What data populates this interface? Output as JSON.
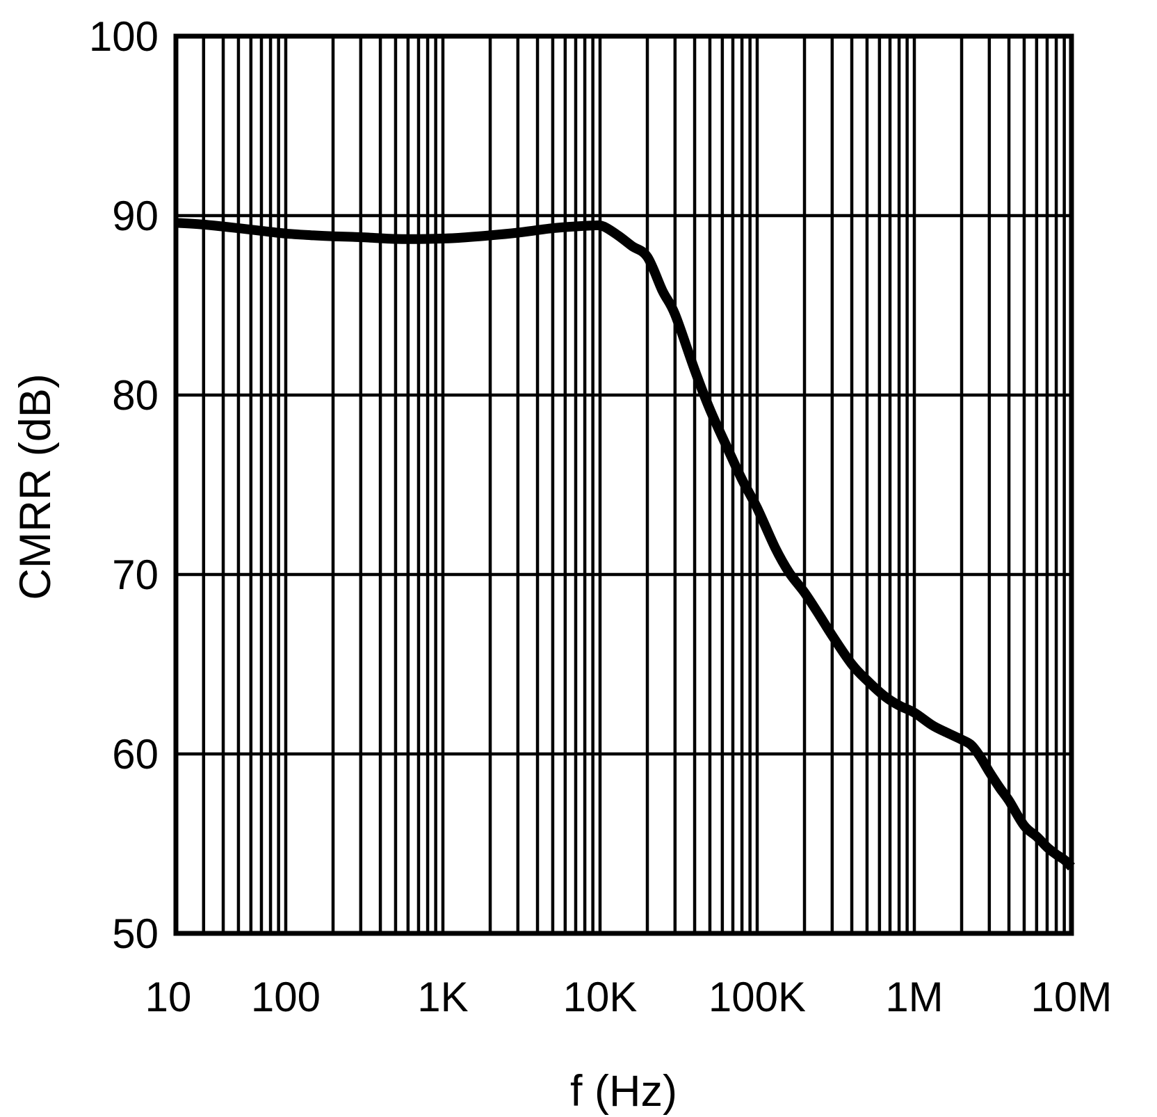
{
  "page": {
    "background_color": "#ffffff",
    "foreground_color": "#000000"
  },
  "chart_data": {
    "type": "line",
    "title": "",
    "xlabel": "f (Hz)",
    "ylabel": "CMRR (dB)",
    "x_scale": "log",
    "y_scale": "linear",
    "xlim": [
      20,
      10000000
    ],
    "ylim": [
      50,
      100
    ],
    "grid": "on",
    "grid_style": "log minor vertical gridlines every decade step, horizontal gridlines every 10 dB",
    "legend": "none",
    "x_ticks": [
      {
        "value": 10,
        "label": "10"
      },
      {
        "value": 100,
        "label": "100"
      },
      {
        "value": 1000,
        "label": "1K"
      },
      {
        "value": 10000,
        "label": "10K"
      },
      {
        "value": 100000,
        "label": "100K"
      },
      {
        "value": 1000000,
        "label": "1M"
      },
      {
        "value": 10000000,
        "label": "10M"
      }
    ],
    "y_ticks": [
      {
        "value": 100,
        "label": "100"
      },
      {
        "value": 90,
        "label": "90"
      },
      {
        "value": 80,
        "label": "80"
      },
      {
        "value": 70,
        "label": "70"
      },
      {
        "value": 60,
        "label": "60"
      },
      {
        "value": 50,
        "label": "50"
      }
    ],
    "series": [
      {
        "name": "CMRR",
        "color": "#000000",
        "stroke_width": 14,
        "points": [
          [
            20,
            89.6
          ],
          [
            30,
            89.5
          ],
          [
            50,
            89.3
          ],
          [
            70,
            89.15
          ],
          [
            100,
            89.0
          ],
          [
            150,
            88.9
          ],
          [
            200,
            88.85
          ],
          [
            300,
            88.8
          ],
          [
            500,
            88.7
          ],
          [
            800,
            88.7
          ],
          [
            1200,
            88.75
          ],
          [
            2000,
            88.9
          ],
          [
            3000,
            89.05
          ],
          [
            5000,
            89.3
          ],
          [
            7000,
            89.4
          ],
          [
            9000,
            89.45
          ],
          [
            10500,
            89.4
          ],
          [
            13000,
            88.9
          ],
          [
            16000,
            88.3
          ],
          [
            20000,
            87.7
          ],
          [
            25000,
            85.8
          ],
          [
            30000,
            84.5
          ],
          [
            40000,
            81.4
          ],
          [
            50000,
            79.2
          ],
          [
            65000,
            77.0
          ],
          [
            80000,
            75.3
          ],
          [
            100000,
            73.7
          ],
          [
            130000,
            71.5
          ],
          [
            160000,
            70.1
          ],
          [
            200000,
            69.0
          ],
          [
            250000,
            67.7
          ],
          [
            300000,
            66.6
          ],
          [
            400000,
            65.0
          ],
          [
            500000,
            64.1
          ],
          [
            650000,
            63.2
          ],
          [
            800000,
            62.7
          ],
          [
            1000000,
            62.3
          ],
          [
            1300000,
            61.6
          ],
          [
            1600000,
            61.2
          ],
          [
            2000000,
            60.8
          ],
          [
            2300000,
            60.5
          ],
          [
            2600000,
            59.9
          ],
          [
            3000000,
            59.0
          ],
          [
            3500000,
            58.1
          ],
          [
            4000000,
            57.4
          ],
          [
            5000000,
            56.0
          ],
          [
            6000000,
            55.4
          ],
          [
            7000000,
            54.8
          ],
          [
            8000000,
            54.4
          ],
          [
            9000000,
            54.1
          ],
          [
            10000000,
            53.7
          ]
        ]
      }
    ],
    "style": {
      "grid_color": "#000000",
      "grid_line_width": 4.5,
      "border_color": "#000000",
      "border_width": 7,
      "background": "#ffffff"
    }
  }
}
